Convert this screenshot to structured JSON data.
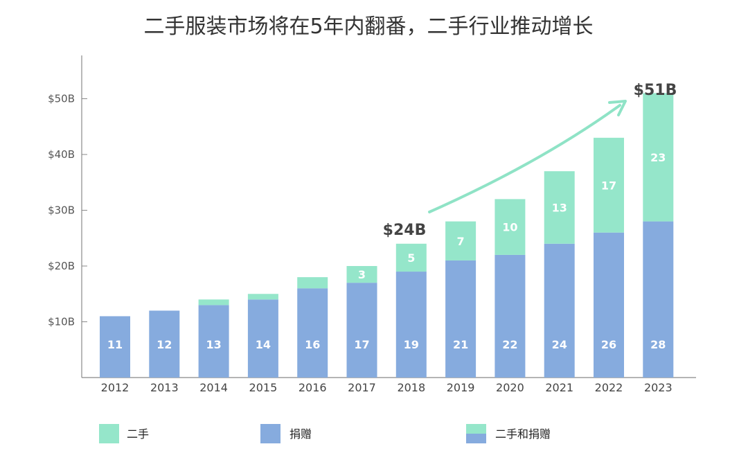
{
  "chart_data": {
    "type": "bar",
    "stacked": true,
    "title": "二手服装市场将在5年内翻番，二手行业推动增长",
    "categories": [
      "2012",
      "2013",
      "2014",
      "2015",
      "2016",
      "2017",
      "2018",
      "2019",
      "2020",
      "2021",
      "2022",
      "2023"
    ],
    "series": [
      {
        "name": "捐赠",
        "color": "#86abde",
        "values": [
          11,
          12,
          13,
          14,
          16,
          17,
          19,
          21,
          22,
          24,
          26,
          28
        ],
        "labels": [
          "11",
          "12",
          "13",
          "14",
          "16",
          "17",
          "19",
          "21",
          "22",
          "24",
          "26",
          "28"
        ]
      },
      {
        "name": "二手",
        "color": "#95e6ca",
        "values": [
          0,
          0,
          1,
          1,
          2,
          3,
          5,
          7,
          10,
          13,
          17,
          23
        ],
        "labels": [
          "",
          "",
          "",
          "",
          "",
          "3",
          "5",
          "7",
          "10",
          "13",
          "17",
          "23"
        ]
      }
    ],
    "yticks": [
      "$10B",
      "$20B",
      "$30B",
      "$40B",
      "$50B"
    ],
    "ylim": [
      0,
      58
    ],
    "annotations": {
      "start": "$24B",
      "end": "$51B"
    },
    "legend": [
      {
        "label": "二手"
      },
      {
        "label": "捐赠"
      },
      {
        "label": "二手和捐赠"
      }
    ],
    "colors": {
      "secondhand": "#95e6ca",
      "donation": "#86abde",
      "arrow": "#8fe3c6",
      "axis": "#888888"
    }
  }
}
